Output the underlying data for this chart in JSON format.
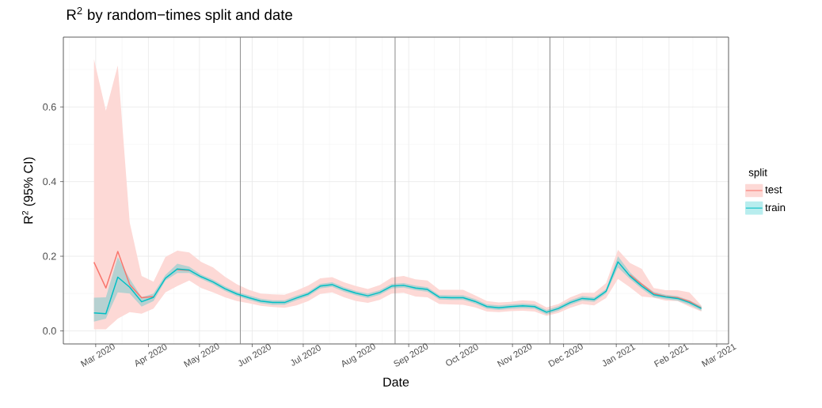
{
  "chart_data": {
    "type": "line",
    "title": "R$^{2}$ by random−times split and date",
    "xlabel": "Date",
    "ylabel": "R$^{2}$ (95% CI)",
    "legend_title": "split",
    "x": [
      "2020-02-29",
      "2020-03-07",
      "2020-03-14",
      "2020-03-21",
      "2020-03-28",
      "2020-04-04",
      "2020-04-11",
      "2020-04-18",
      "2020-04-25",
      "2020-05-02",
      "2020-05-09",
      "2020-05-16",
      "2020-05-23",
      "2020-05-30",
      "2020-06-06",
      "2020-06-13",
      "2020-06-20",
      "2020-06-27",
      "2020-07-04",
      "2020-07-11",
      "2020-07-18",
      "2020-07-25",
      "2020-08-01",
      "2020-08-08",
      "2020-08-15",
      "2020-08-22",
      "2020-08-29",
      "2020-09-05",
      "2020-09-12",
      "2020-09-19",
      "2020-09-26",
      "2020-10-03",
      "2020-10-10",
      "2020-10-17",
      "2020-10-24",
      "2020-10-31",
      "2020-11-07",
      "2020-11-14",
      "2020-11-21",
      "2020-11-28",
      "2020-12-05",
      "2020-12-12",
      "2020-12-19",
      "2020-12-26",
      "2021-01-02",
      "2021-01-09",
      "2021-01-16",
      "2021-01-23",
      "2021-01-30",
      "2021-02-06",
      "2021-02-13",
      "2021-02-20"
    ],
    "series": [
      {
        "name": "test",
        "color": "#f8766d",
        "values": [
          0.184,
          0.115,
          0.213,
          0.124,
          0.089,
          0.092,
          null,
          0.164,
          0.162,
          null,
          null,
          null,
          null,
          null,
          null,
          null,
          null,
          null,
          null,
          null,
          null,
          null,
          null,
          null,
          null,
          null,
          null,
          null,
          null,
          null,
          null,
          null,
          null,
          null,
          null,
          null,
          null,
          null,
          null,
          null,
          null,
          null,
          null,
          null,
          null,
          0.15,
          0.125,
          0.1,
          0.092,
          0.089,
          0.079,
          0.061
        ],
        "lower": [
          0.004,
          0.004,
          0.033,
          0.05,
          0.046,
          0.06,
          0.103,
          0.12,
          0.135,
          0.115,
          0.103,
          0.09,
          0.08,
          0.074,
          0.067,
          0.064,
          0.062,
          0.068,
          0.08,
          0.099,
          0.103,
          0.09,
          0.08,
          0.075,
          0.083,
          0.1,
          0.102,
          0.092,
          0.09,
          0.072,
          0.071,
          0.07,
          0.063,
          0.052,
          0.05,
          0.053,
          0.054,
          0.052,
          0.04,
          0.048,
          0.062,
          0.072,
          0.068,
          0.088,
          0.139,
          0.117,
          0.092,
          0.089,
          0.081,
          0.08,
          0.065,
          0.052
        ],
        "upper": [
          0.728,
          0.59,
          0.711,
          0.29,
          0.147,
          0.132,
          0.198,
          0.215,
          0.21,
          0.185,
          0.17,
          0.145,
          0.125,
          0.11,
          0.1,
          0.098,
          0.097,
          0.108,
          0.122,
          0.141,
          0.144,
          0.13,
          0.12,
          0.112,
          0.123,
          0.143,
          0.147,
          0.138,
          0.135,
          0.11,
          0.11,
          0.11,
          0.095,
          0.08,
          0.076,
          0.078,
          0.082,
          0.08,
          0.063,
          0.072,
          0.09,
          0.102,
          0.102,
          0.128,
          0.217,
          0.182,
          0.166,
          0.115,
          0.109,
          0.109,
          0.103,
          0.068
        ]
      },
      {
        "name": "train",
        "color": "#00bfc4",
        "values": [
          0.048,
          0.046,
          0.144,
          0.117,
          0.078,
          0.09,
          0.141,
          0.166,
          0.163,
          0.145,
          0.131,
          0.113,
          0.099,
          0.089,
          0.08,
          0.076,
          0.076,
          0.088,
          0.099,
          0.12,
          0.124,
          0.111,
          0.101,
          0.094,
          0.103,
          0.12,
          0.122,
          0.115,
          0.111,
          0.09,
          0.089,
          0.089,
          0.079,
          0.065,
          0.062,
          0.065,
          0.067,
          0.065,
          0.05,
          0.06,
          0.076,
          0.087,
          0.084,
          0.106,
          0.185,
          0.147,
          0.12,
          0.097,
          0.091,
          0.087,
          0.076,
          0.06
        ],
        "lower": [
          0.025,
          0.033,
          0.103,
          0.1,
          0.065,
          0.08,
          0.135,
          0.155,
          0.155,
          0.139,
          0.125,
          0.107,
          0.093,
          0.083,
          0.074,
          0.07,
          0.07,
          0.082,
          0.093,
          0.114,
          0.118,
          0.105,
          0.095,
          0.088,
          0.097,
          0.114,
          0.116,
          0.109,
          0.105,
          0.084,
          0.083,
          0.083,
          0.073,
          0.059,
          0.056,
          0.059,
          0.061,
          0.059,
          0.044,
          0.054,
          0.07,
          0.081,
          0.078,
          0.1,
          0.17,
          0.139,
          0.113,
          0.09,
          0.085,
          0.081,
          0.07,
          0.054
        ],
        "upper": [
          0.089,
          0.09,
          0.198,
          0.14,
          0.09,
          0.1,
          0.15,
          0.18,
          0.172,
          0.151,
          0.137,
          0.119,
          0.105,
          0.095,
          0.086,
          0.082,
          0.082,
          0.094,
          0.105,
          0.126,
          0.13,
          0.117,
          0.107,
          0.1,
          0.109,
          0.126,
          0.128,
          0.121,
          0.117,
          0.096,
          0.095,
          0.095,
          0.085,
          0.071,
          0.068,
          0.071,
          0.073,
          0.071,
          0.056,
          0.066,
          0.082,
          0.093,
          0.09,
          0.112,
          0.2,
          0.157,
          0.128,
          0.105,
          0.097,
          0.093,
          0.082,
          0.066
        ]
      }
    ],
    "xlim": [
      "2020-02-11",
      "2021-03-08"
    ],
    "xticks": [
      {
        "value": "2020-03-01",
        "label": "Mar 2020"
      },
      {
        "value": "2020-04-01",
        "label": "Apr 2020"
      },
      {
        "value": "2020-05-01",
        "label": "May 2020"
      },
      {
        "value": "2020-06-01",
        "label": "Jun 2020"
      },
      {
        "value": "2020-07-01",
        "label": "Jul 2020"
      },
      {
        "value": "2020-08-01",
        "label": "Aug 2020"
      },
      {
        "value": "2020-09-01",
        "label": "Sep 2020"
      },
      {
        "value": "2020-10-01",
        "label": "Oct 2020"
      },
      {
        "value": "2020-11-01",
        "label": "Nov 2020"
      },
      {
        "value": "2020-12-01",
        "label": "Dec 2020"
      },
      {
        "value": "2021-01-01",
        "label": "Jan 2021"
      },
      {
        "value": "2021-02-01",
        "label": "Feb 2021"
      },
      {
        "value": "2021-03-01",
        "label": "Mar 2021"
      }
    ],
    "ylim": [
      -0.035,
      0.787
    ],
    "yticks": [
      {
        "value": 0,
        "label": "0.0"
      },
      0.2,
      0.4,
      0.6
    ],
    "ref_lines": [
      {
        "axis": "x",
        "value": "2020-05-25",
        "color": "#808080"
      },
      {
        "axis": "x",
        "value": "2020-08-24",
        "color": "#808080"
      },
      {
        "axis": "x",
        "value": "2020-11-23",
        "color": "#808080"
      }
    ],
    "grid": true,
    "legend": "right"
  }
}
